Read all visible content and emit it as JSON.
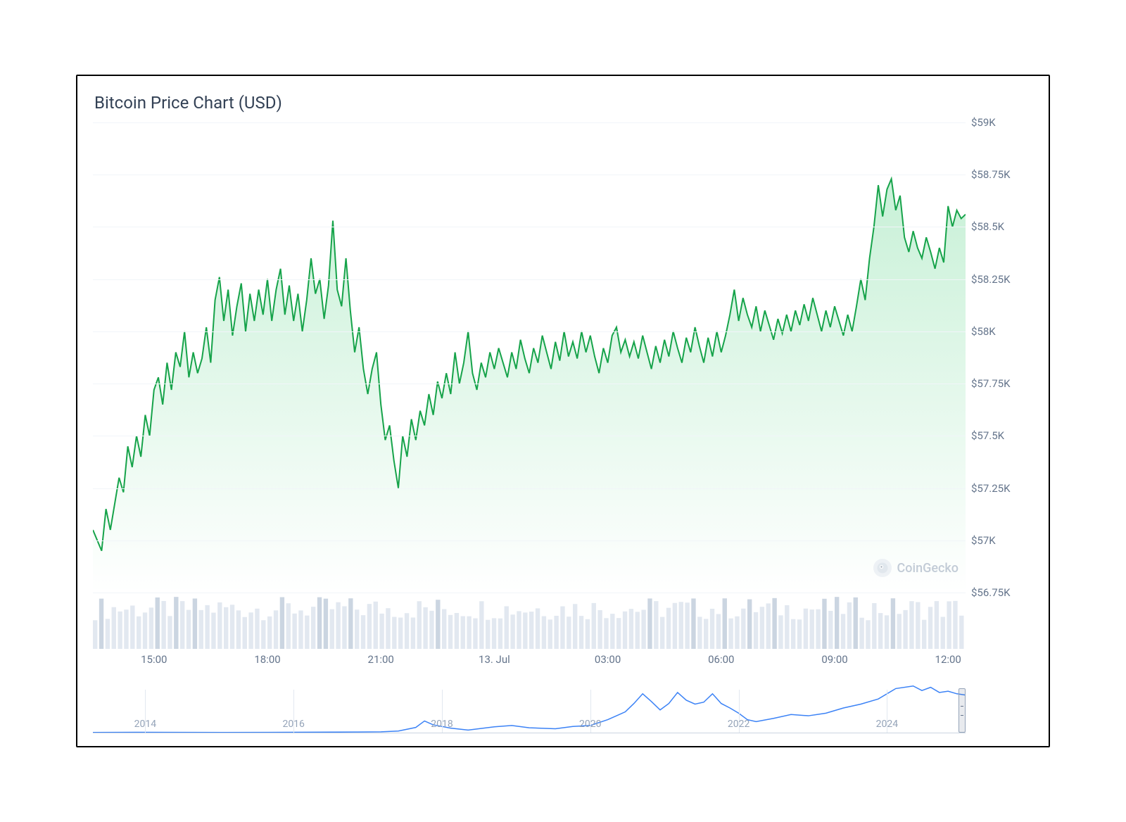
{
  "title": "Bitcoin Price Chart (USD)",
  "watermark_text": "CoinGecko",
  "main_chart": {
    "type": "area",
    "line_color": "#16a34a",
    "line_width": 2,
    "fill_top_color": "rgba(34,197,94,0.25)",
    "fill_bottom_color": "rgba(34,197,94,0.0)",
    "grid_color": "#f1f5f9",
    "background_color": "#ffffff",
    "ylim": [
      56750,
      59000
    ],
    "y_ticks": [
      {
        "v": 59000,
        "label": "$59K"
      },
      {
        "v": 58750,
        "label": "$58.75K"
      },
      {
        "v": 58500,
        "label": "$58.5K"
      },
      {
        "v": 58250,
        "label": "$58.25K"
      },
      {
        "v": 58000,
        "label": "$58K"
      },
      {
        "v": 57750,
        "label": "$57.75K"
      },
      {
        "v": 57500,
        "label": "$57.5K"
      },
      {
        "v": 57250,
        "label": "$57.25K"
      },
      {
        "v": 57000,
        "label": "$57K"
      },
      {
        "v": 56750,
        "label": "$56.75K"
      }
    ],
    "xlim": [
      0,
      100
    ],
    "x_ticks": [
      {
        "v": 7,
        "label": "15:00"
      },
      {
        "v": 20,
        "label": "18:00"
      },
      {
        "v": 33,
        "label": "21:00"
      },
      {
        "v": 46,
        "label": "13. Jul"
      },
      {
        "v": 59,
        "label": "03:00"
      },
      {
        "v": 72,
        "label": "06:00"
      },
      {
        "v": 85,
        "label": "09:00"
      },
      {
        "v": 98,
        "label": "12:00"
      }
    ],
    "series": [
      {
        "x": 0,
        "y": 57050
      },
      {
        "x": 1,
        "y": 56950
      },
      {
        "x": 1.5,
        "y": 57150
      },
      {
        "x": 2,
        "y": 57050
      },
      {
        "x": 3,
        "y": 57300
      },
      {
        "x": 3.5,
        "y": 57230
      },
      {
        "x": 4,
        "y": 57450
      },
      {
        "x": 4.5,
        "y": 57350
      },
      {
        "x": 5,
        "y": 57500
      },
      {
        "x": 5.5,
        "y": 57400
      },
      {
        "x": 6,
        "y": 57600
      },
      {
        "x": 6.5,
        "y": 57500
      },
      {
        "x": 7,
        "y": 57720
      },
      {
        "x": 7.5,
        "y": 57780
      },
      {
        "x": 8,
        "y": 57650
      },
      {
        "x": 8.5,
        "y": 57850
      },
      {
        "x": 9,
        "y": 57720
      },
      {
        "x": 9.5,
        "y": 57900
      },
      {
        "x": 10,
        "y": 57830
      },
      {
        "x": 10.5,
        "y": 58000
      },
      {
        "x": 11,
        "y": 57780
      },
      {
        "x": 11.5,
        "y": 57900
      },
      {
        "x": 12,
        "y": 57800
      },
      {
        "x": 12.5,
        "y": 57870
      },
      {
        "x": 13,
        "y": 58020
      },
      {
        "x": 13.5,
        "y": 57850
      },
      {
        "x": 14,
        "y": 58150
      },
      {
        "x": 14.5,
        "y": 58260
      },
      {
        "x": 15,
        "y": 58050
      },
      {
        "x": 15.5,
        "y": 58200
      },
      {
        "x": 16,
        "y": 57980
      },
      {
        "x": 16.5,
        "y": 58120
      },
      {
        "x": 17,
        "y": 58230
      },
      {
        "x": 17.5,
        "y": 58000
      },
      {
        "x": 18,
        "y": 58180
      },
      {
        "x": 18.5,
        "y": 58050
      },
      {
        "x": 19,
        "y": 58200
      },
      {
        "x": 19.5,
        "y": 58080
      },
      {
        "x": 20,
        "y": 58250
      },
      {
        "x": 20.5,
        "y": 58050
      },
      {
        "x": 21,
        "y": 58200
      },
      {
        "x": 21.5,
        "y": 58300
      },
      {
        "x": 22,
        "y": 58080
      },
      {
        "x": 22.5,
        "y": 58220
      },
      {
        "x": 23,
        "y": 58050
      },
      {
        "x": 23.5,
        "y": 58180
      },
      {
        "x": 24,
        "y": 58000
      },
      {
        "x": 24.5,
        "y": 58150
      },
      {
        "x": 25,
        "y": 58350
      },
      {
        "x": 25.5,
        "y": 58180
      },
      {
        "x": 26,
        "y": 58250
      },
      {
        "x": 26.5,
        "y": 58060
      },
      {
        "x": 27,
        "y": 58220
      },
      {
        "x": 27.5,
        "y": 58530
      },
      {
        "x": 28,
        "y": 58200
      },
      {
        "x": 28.5,
        "y": 58120
      },
      {
        "x": 29,
        "y": 58350
      },
      {
        "x": 29.5,
        "y": 58100
      },
      {
        "x": 30,
        "y": 57900
      },
      {
        "x": 30.5,
        "y": 58020
      },
      {
        "x": 31,
        "y": 57820
      },
      {
        "x": 31.5,
        "y": 57700
      },
      {
        "x": 32,
        "y": 57820
      },
      {
        "x": 32.5,
        "y": 57900
      },
      {
        "x": 33,
        "y": 57650
      },
      {
        "x": 33.5,
        "y": 57480
      },
      {
        "x": 34,
        "y": 57550
      },
      {
        "x": 34.5,
        "y": 57380
      },
      {
        "x": 35,
        "y": 57250
      },
      {
        "x": 35.5,
        "y": 57500
      },
      {
        "x": 36,
        "y": 57400
      },
      {
        "x": 36.5,
        "y": 57580
      },
      {
        "x": 37,
        "y": 57480
      },
      {
        "x": 37.5,
        "y": 57620
      },
      {
        "x": 38,
        "y": 57550
      },
      {
        "x": 38.5,
        "y": 57700
      },
      {
        "x": 39,
        "y": 57600
      },
      {
        "x": 39.5,
        "y": 57760
      },
      {
        "x": 40,
        "y": 57680
      },
      {
        "x": 40.5,
        "y": 57800
      },
      {
        "x": 41,
        "y": 57700
      },
      {
        "x": 41.5,
        "y": 57900
      },
      {
        "x": 42,
        "y": 57750
      },
      {
        "x": 42.5,
        "y": 57850
      },
      {
        "x": 43,
        "y": 58000
      },
      {
        "x": 43.5,
        "y": 57800
      },
      {
        "x": 44,
        "y": 57720
      },
      {
        "x": 44.5,
        "y": 57850
      },
      {
        "x": 45,
        "y": 57780
      },
      {
        "x": 45.5,
        "y": 57900
      },
      {
        "x": 46,
        "y": 57820
      },
      {
        "x": 46.5,
        "y": 57920
      },
      {
        "x": 47,
        "y": 57850
      },
      {
        "x": 47.5,
        "y": 57780
      },
      {
        "x": 48,
        "y": 57900
      },
      {
        "x": 48.5,
        "y": 57820
      },
      {
        "x": 49,
        "y": 57960
      },
      {
        "x": 49.5,
        "y": 57870
      },
      {
        "x": 50,
        "y": 57800
      },
      {
        "x": 50.5,
        "y": 57920
      },
      {
        "x": 51,
        "y": 57850
      },
      {
        "x": 51.5,
        "y": 57980
      },
      {
        "x": 52,
        "y": 57900
      },
      {
        "x": 52.5,
        "y": 57820
      },
      {
        "x": 53,
        "y": 57950
      },
      {
        "x": 53.5,
        "y": 57860
      },
      {
        "x": 54,
        "y": 58000
      },
      {
        "x": 54.5,
        "y": 57880
      },
      {
        "x": 55,
        "y": 57950
      },
      {
        "x": 55.5,
        "y": 57870
      },
      {
        "x": 56,
        "y": 58000
      },
      {
        "x": 56.5,
        "y": 57900
      },
      {
        "x": 57,
        "y": 57980
      },
      {
        "x": 57.5,
        "y": 57880
      },
      {
        "x": 58,
        "y": 57800
      },
      {
        "x": 58.5,
        "y": 57920
      },
      {
        "x": 59,
        "y": 57850
      },
      {
        "x": 59.5,
        "y": 57980
      },
      {
        "x": 60,
        "y": 58020
      },
      {
        "x": 60.5,
        "y": 57900
      },
      {
        "x": 61,
        "y": 57960
      },
      {
        "x": 61.5,
        "y": 57880
      },
      {
        "x": 62,
        "y": 57950
      },
      {
        "x": 62.5,
        "y": 57870
      },
      {
        "x": 63,
        "y": 57980
      },
      {
        "x": 63.5,
        "y": 57900
      },
      {
        "x": 64,
        "y": 57820
      },
      {
        "x": 64.5,
        "y": 57930
      },
      {
        "x": 65,
        "y": 57850
      },
      {
        "x": 65.5,
        "y": 57960
      },
      {
        "x": 66,
        "y": 57880
      },
      {
        "x": 66.5,
        "y": 58000
      },
      {
        "x": 67,
        "y": 57920
      },
      {
        "x": 67.5,
        "y": 57850
      },
      {
        "x": 68,
        "y": 57970
      },
      {
        "x": 68.5,
        "y": 57900
      },
      {
        "x": 69,
        "y": 58020
      },
      {
        "x": 69.5,
        "y": 57930
      },
      {
        "x": 70,
        "y": 57850
      },
      {
        "x": 70.5,
        "y": 57970
      },
      {
        "x": 71,
        "y": 57880
      },
      {
        "x": 71.5,
        "y": 58000
      },
      {
        "x": 72,
        "y": 57900
      },
      {
        "x": 72.5,
        "y": 57980
      },
      {
        "x": 73,
        "y": 58080
      },
      {
        "x": 73.5,
        "y": 58200
      },
      {
        "x": 74,
        "y": 58050
      },
      {
        "x": 74.5,
        "y": 58160
      },
      {
        "x": 75,
        "y": 58080
      },
      {
        "x": 75.5,
        "y": 58020
      },
      {
        "x": 76,
        "y": 58120
      },
      {
        "x": 76.5,
        "y": 58000
      },
      {
        "x": 77,
        "y": 58100
      },
      {
        "x": 77.5,
        "y": 58030
      },
      {
        "x": 78,
        "y": 57960
      },
      {
        "x": 78.5,
        "y": 58060
      },
      {
        "x": 79,
        "y": 57990
      },
      {
        "x": 79.5,
        "y": 58080
      },
      {
        "x": 80,
        "y": 58000
      },
      {
        "x": 80.5,
        "y": 58100
      },
      {
        "x": 81,
        "y": 58030
      },
      {
        "x": 81.5,
        "y": 58130
      },
      {
        "x": 82,
        "y": 58050
      },
      {
        "x": 82.5,
        "y": 58160
      },
      {
        "x": 83,
        "y": 58080
      },
      {
        "x": 83.5,
        "y": 58000
      },
      {
        "x": 84,
        "y": 58100
      },
      {
        "x": 84.5,
        "y": 58020
      },
      {
        "x": 85,
        "y": 58120
      },
      {
        "x": 85.5,
        "y": 58050
      },
      {
        "x": 86,
        "y": 57980
      },
      {
        "x": 86.5,
        "y": 58080
      },
      {
        "x": 87,
        "y": 58000
      },
      {
        "x": 87.5,
        "y": 58120
      },
      {
        "x": 88,
        "y": 58250
      },
      {
        "x": 88.5,
        "y": 58150
      },
      {
        "x": 89,
        "y": 58350
      },
      {
        "x": 89.5,
        "y": 58500
      },
      {
        "x": 90,
        "y": 58700
      },
      {
        "x": 90.5,
        "y": 58550
      },
      {
        "x": 91,
        "y": 58680
      },
      {
        "x": 91.5,
        "y": 58730
      },
      {
        "x": 92,
        "y": 58580
      },
      {
        "x": 92.5,
        "y": 58650
      },
      {
        "x": 93,
        "y": 58450
      },
      {
        "x": 93.5,
        "y": 58380
      },
      {
        "x": 94,
        "y": 58480
      },
      {
        "x": 94.5,
        "y": 58400
      },
      {
        "x": 95,
        "y": 58350
      },
      {
        "x": 95.5,
        "y": 58450
      },
      {
        "x": 96,
        "y": 58380
      },
      {
        "x": 96.5,
        "y": 58300
      },
      {
        "x": 97,
        "y": 58400
      },
      {
        "x": 97.5,
        "y": 58330
      },
      {
        "x": 98,
        "y": 58600
      },
      {
        "x": 98.5,
        "y": 58500
      },
      {
        "x": 99,
        "y": 58580
      },
      {
        "x": 99.5,
        "y": 58540
      },
      {
        "x": 100,
        "y": 58560
      }
    ]
  },
  "volume_chart": {
    "type": "bar",
    "bar_color": "#e2e8f0",
    "bar_color_alt": "#cbd5e1",
    "count": 140,
    "base_height_range": [
      0.55,
      1.0
    ]
  },
  "navigator": {
    "type": "line",
    "line_color": "#3b82f6",
    "line_width": 1.5,
    "grid_color": "#e2e8f0",
    "ylim": [
      0,
      75000
    ],
    "xlim": [
      0,
      100
    ],
    "x_ticks": [
      {
        "v": 6,
        "label": "2014"
      },
      {
        "v": 23,
        "label": "2016"
      },
      {
        "v": 40,
        "label": "2018"
      },
      {
        "v": 57,
        "label": "2020"
      },
      {
        "v": 74,
        "label": "2022"
      },
      {
        "v": 91,
        "label": "2024"
      }
    ],
    "series": [
      {
        "x": 0,
        "y": 300
      },
      {
        "x": 5,
        "y": 600
      },
      {
        "x": 10,
        "y": 400
      },
      {
        "x": 15,
        "y": 300
      },
      {
        "x": 20,
        "y": 450
      },
      {
        "x": 25,
        "y": 700
      },
      {
        "x": 30,
        "y": 900
      },
      {
        "x": 33,
        "y": 1200
      },
      {
        "x": 35,
        "y": 2500
      },
      {
        "x": 37,
        "y": 8000
      },
      {
        "x": 38,
        "y": 18000
      },
      {
        "x": 39,
        "y": 12000
      },
      {
        "x": 41,
        "y": 7000
      },
      {
        "x": 43,
        "y": 4000
      },
      {
        "x": 46,
        "y": 9000
      },
      {
        "x": 48,
        "y": 11000
      },
      {
        "x": 50,
        "y": 7500
      },
      {
        "x": 53,
        "y": 6000
      },
      {
        "x": 55,
        "y": 9500
      },
      {
        "x": 57,
        "y": 11000
      },
      {
        "x": 59,
        "y": 20000
      },
      {
        "x": 61,
        "y": 32000
      },
      {
        "x": 62,
        "y": 45000
      },
      {
        "x": 63,
        "y": 60000
      },
      {
        "x": 64,
        "y": 48000
      },
      {
        "x": 65,
        "y": 35000
      },
      {
        "x": 66,
        "y": 45000
      },
      {
        "x": 67,
        "y": 62000
      },
      {
        "x": 68,
        "y": 50000
      },
      {
        "x": 69,
        "y": 44000
      },
      {
        "x": 70,
        "y": 47000
      },
      {
        "x": 71,
        "y": 60000
      },
      {
        "x": 72,
        "y": 45000
      },
      {
        "x": 73,
        "y": 38000
      },
      {
        "x": 74,
        "y": 30000
      },
      {
        "x": 75,
        "y": 20000
      },
      {
        "x": 76,
        "y": 17000
      },
      {
        "x": 78,
        "y": 22000
      },
      {
        "x": 80,
        "y": 28000
      },
      {
        "x": 82,
        "y": 26000
      },
      {
        "x": 84,
        "y": 30000
      },
      {
        "x": 86,
        "y": 38000
      },
      {
        "x": 88,
        "y": 44000
      },
      {
        "x": 90,
        "y": 52000
      },
      {
        "x": 92,
        "y": 68000
      },
      {
        "x": 94,
        "y": 72000
      },
      {
        "x": 95,
        "y": 65000
      },
      {
        "x": 96,
        "y": 70000
      },
      {
        "x": 97,
        "y": 62000
      },
      {
        "x": 98,
        "y": 64000
      },
      {
        "x": 99,
        "y": 60000
      },
      {
        "x": 100,
        "y": 58000
      }
    ]
  }
}
